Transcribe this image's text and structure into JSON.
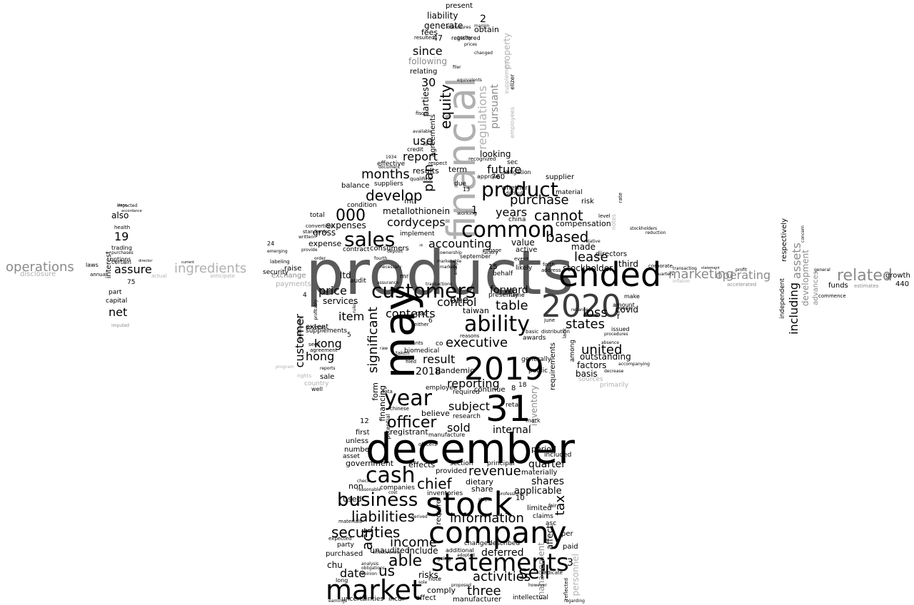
{
  "word_cloud": {
    "words": [
      "products",
      "december",
      "financial",
      "may",
      "ended",
      "2020",
      "2019",
      "31",
      "company",
      "stock",
      "market",
      "statements",
      "customers",
      "ability",
      "common",
      "product",
      "sales",
      "cash",
      "business",
      "sell",
      "year",
      "officer",
      "chief",
      "revenue",
      "information",
      "liabilities",
      "securities",
      "able",
      "activities",
      "three",
      "income",
      "us",
      "act",
      "date",
      "significant",
      "executive",
      "loss",
      "united",
      "states",
      "lease",
      "based",
      "cannot",
      "purchase",
      "years",
      "future",
      "develop",
      "months",
      "000",
      "equity",
      "since",
      "use",
      "report",
      "accounting",
      "control",
      "table",
      "forward",
      "item",
      "contents",
      "hong",
      "kong",
      "customer",
      "price",
      "reporting",
      "subject",
      "sold",
      "internal",
      "result",
      "quarter",
      "shares",
      "applicable",
      "tax",
      "deferred",
      "operations",
      "ingredients",
      "marketing",
      "operating",
      "related",
      "including",
      "assets",
      "development",
      "assure",
      "net",
      "19",
      "also",
      "interest",
      "regulations",
      "pursuant",
      "cordyceps",
      "metallothionein",
      "1",
      "30",
      "following",
      "relating",
      "parties",
      "agreements",
      "liability",
      "generate",
      "present",
      "47",
      "2",
      "obtain",
      "purity",
      "fees",
      "management",
      "personnel",
      "inventory",
      "requirements",
      "factors",
      "basis",
      "outstanding",
      "stockholder",
      "directors",
      "covid",
      "third",
      "made",
      "respectively",
      "independent",
      "growth",
      "440",
      "funds",
      "estimates",
      "advances",
      "exchange",
      "raise",
      "disclosure",
      "capital",
      "health",
      "trading",
      "options",
      "part",
      "plans",
      "imputed",
      "laws",
      "certain",
      "purchases",
      "18",
      "3",
      "2018",
      "ltd",
      "services",
      "audit",
      "expense",
      "expenses",
      "gross",
      "total",
      "plan",
      "looking",
      "supplier",
      "risk",
      "material",
      "compensation",
      "value",
      "active",
      "forth",
      "address",
      "taiwan",
      "continue",
      "8",
      "pandemic",
      "retail",
      "public",
      "generally",
      "awards",
      "mark",
      "period",
      "included",
      "limited",
      "claims",
      "asc",
      "paid",
      "affect",
      "per",
      "10",
      "fair",
      "government",
      "effects",
      "section",
      "principal",
      "dietary",
      "share",
      "provided",
      "materially",
      "unaudited",
      "include",
      "changes",
      "additional",
      "described",
      "going",
      "risks",
      "note",
      "comply",
      "effect",
      "manufacturer",
      "intellectual",
      "incur",
      "uncertainties",
      "chu",
      "purchased",
      "party",
      "expected",
      "materials",
      "used",
      "non",
      "companies",
      "inventories",
      "require",
      "number",
      "asset",
      "unless",
      "registrant",
      "first",
      "manufacture",
      "research",
      "believe",
      "required",
      "employee",
      "biomedical",
      "co",
      "one",
      "consumers",
      "contract",
      "implement",
      "september",
      "whether",
      "china",
      "due",
      "results",
      "term",
      "balance",
      "suppliers",
      "qualified",
      "condition",
      "mt",
      "effective",
      "credit",
      "fiscal",
      "mr",
      "pao",
      "extent",
      "supplements",
      "sale",
      "adverse",
      "seek",
      "agreement",
      "country",
      "well",
      "form",
      "financing",
      "potential",
      "12",
      "15",
      "760",
      "13",
      "24",
      "75",
      "5",
      "4",
      "6",
      "f",
      "issued",
      "amount",
      "make",
      "sources",
      "primarily",
      "profit",
      "accelerated",
      "elizer",
      "level",
      "either",
      "reasons",
      "respect",
      "obligation",
      "difficult",
      "working",
      "engage",
      "approval",
      "sec",
      "recognized",
      "employees",
      "supplement",
      "property",
      "equivalents",
      "filer",
      "margin",
      "disclosures",
      "registered",
      "prices",
      "changed",
      "resulted",
      "1934",
      "document",
      "available",
      "among",
      "lack",
      "procedures",
      "absence",
      "reliance",
      "june",
      "event",
      "likely",
      "basic",
      "distribution",
      "behalf",
      "presently",
      "name",
      "amounts",
      "taken",
      "filed",
      "chinese",
      "data",
      "officers",
      "check",
      "reasonable",
      "cost",
      "obligations",
      "analysis",
      "opinion",
      "long",
      "earnings",
      "effectiveness",
      "derived",
      "adopted",
      "however",
      "regarding",
      "indicate",
      "proposed",
      "sole",
      "steps",
      "professional",
      "reflected",
      "power",
      "accompanying",
      "decrease",
      "reports",
      "rights",
      "program",
      "payments",
      "security",
      "labeling",
      "current",
      "provide",
      "written",
      "standards",
      "convertible",
      "emerging",
      "annual",
      "actual",
      "anticipate",
      "director",
      "accordance",
      "stockholders",
      "commence",
      "general",
      "concern",
      "rate",
      "notes",
      "reduction",
      "relative",
      "quarters",
      "transaction",
      "inflation",
      "corporate",
      "statement",
      "fourth",
      "necessary",
      "assurance",
      "raw",
      "transactions",
      "ii",
      "entity",
      "ownership",
      "factory",
      "marketable",
      "deposit",
      "rules",
      "significantly",
      "profitably",
      "markets",
      "order",
      "cards",
      "impacted",
      "concerning",
      "willingness",
      "compliance",
      "agreed",
      "ensure",
      "2017",
      "mil",
      "plans"
    ]
  }
}
